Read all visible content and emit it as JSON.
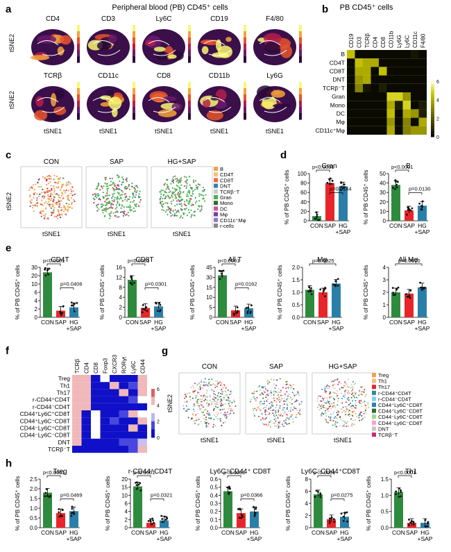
{
  "panel_letters": [
    "a",
    "b",
    "c",
    "d",
    "e",
    "f",
    "g",
    "h"
  ],
  "panel_a": {
    "title": "Peripheral blood (PB) CD45⁺ cells",
    "row1": [
      "CD4",
      "CD3",
      "Ly6C",
      "CD19",
      "F4/80"
    ],
    "row2": [
      "TCRβ",
      "CD11c",
      "CD8",
      "CD11b",
      "Ly6G"
    ],
    "ylabel": "tSNE2",
    "xlabel": "tSNE1"
  },
  "panel_b": {
    "title": "PB CD45⁺ cells",
    "columns": [
      "CD19",
      "CD3",
      "TCRβ",
      "CD4",
      "CD8",
      "CD11b",
      "Ly6G",
      "Ly6C",
      "CD11c",
      "F4/80"
    ],
    "rows": [
      "B",
      "CD4T",
      "CD8T",
      "DNT",
      "TCRβ⁻T",
      "Gran",
      "Mono",
      "DC",
      "Mφ",
      "CD11c⁺Mφ"
    ],
    "matrix": [
      [
        4.5,
        0,
        0,
        0,
        0,
        0,
        0,
        0,
        0.3,
        0
      ],
      [
        0,
        4.5,
        4,
        4,
        0,
        0,
        0,
        0,
        0,
        0
      ],
      [
        0,
        4,
        4,
        0,
        4.5,
        0,
        0,
        0,
        0,
        0
      ],
      [
        0,
        3.5,
        4,
        0,
        0,
        0,
        0,
        0,
        0,
        0
      ],
      [
        0,
        3,
        0.3,
        0,
        0.5,
        0,
        0,
        0,
        0,
        0
      ],
      [
        0,
        0,
        0,
        0,
        0,
        5,
        5,
        3.5,
        0,
        0
      ],
      [
        0,
        0,
        0,
        0,
        0,
        4,
        0.5,
        5,
        0,
        0.5
      ],
      [
        0,
        0,
        0,
        0,
        0,
        4.5,
        0,
        4,
        3.5,
        0.5
      ],
      [
        0,
        0,
        0,
        0,
        0,
        3.5,
        0,
        3,
        0,
        4
      ],
      [
        0,
        0,
        0,
        0,
        0,
        4,
        0,
        3,
        3.5,
        3.5
      ]
    ],
    "colorbar_ticks": [
      "6",
      "4",
      "2",
      "0"
    ]
  },
  "panel_c": {
    "conditions": [
      "CON",
      "SAP",
      "HG+SAP"
    ],
    "legend": [
      {
        "label": "B",
        "color": "#f2a04a"
      },
      {
        "label": "CD4T",
        "color": "#f4c27a"
      },
      {
        "label": "CD8T",
        "color": "#f06a3a"
      },
      {
        "label": "DNT",
        "color": "#2e7fb8"
      },
      {
        "label": "TCRβ⁻T",
        "color": "#c8c8c8"
      },
      {
        "label": "Gran",
        "color": "#4caf50"
      },
      {
        "label": "Mono",
        "color": "#2e6b2e"
      },
      {
        "label": "DC",
        "color": "#d04da0"
      },
      {
        "label": "Mφ",
        "color": "#7b3f98"
      },
      {
        "label": "CD11c⁺Mφ",
        "color": "#8e7bc0"
      },
      {
        "label": "r-cells",
        "color": "#888888"
      }
    ],
    "ylabel": "tSNE2",
    "xlabel": "tSNE1"
  },
  "groups": [
    "CON",
    "SAP",
    "HG",
    "+SAP"
  ],
  "colors": {
    "con": "#2e8b3e",
    "sap": "#e8262a",
    "hg": "#2a7fa8"
  },
  "chart_data": [
    {
      "type": "bar",
      "title": "Gran",
      "ylabel": "% of PB CD45⁺ cells",
      "categories": [
        "CON",
        "SAP",
        "HG+SAP"
      ],
      "values": [
        10,
        80,
        73
      ],
      "ylim": [
        0,
        100
      ],
      "ticks": [
        "0",
        "20",
        "40",
        "60",
        "80",
        "100"
      ],
      "p_values": [
        "p<0.0001",
        "p=0.0144"
      ]
    },
    {
      "type": "bar",
      "title": "B",
      "ylabel": "% of PB CD45⁺ cells",
      "categories": [
        "CON",
        "SAP",
        "HG+SAP"
      ],
      "values": [
        38,
        11,
        16
      ],
      "ylim": [
        0,
        50
      ],
      "ticks": [
        "0",
        "10",
        "20",
        "30",
        "40",
        "50"
      ],
      "p_values": [
        "p<0.0001",
        "p=0.0130"
      ]
    },
    {
      "type": "bar",
      "title": "CD4T",
      "ylabel": "% of PB CD45⁺ cells",
      "categories": [
        "CON",
        "SAP",
        "HG+SAP"
      ],
      "values": [
        27,
        4,
        6
      ],
      "ylim": [
        0,
        30
      ],
      "ticks": [
        "0",
        "2",
        "4",
        "6",
        "10",
        "20",
        "30"
      ],
      "p_values": [
        "p<0.0001",
        "p=0.0406"
      ]
    },
    {
      "type": "bar",
      "title": "CD8T",
      "ylabel": "% of PB CD45⁺ cells",
      "categories": [
        "CON",
        "SAP",
        "HG+SAP"
      ],
      "values": [
        12,
        3,
        3.5
      ],
      "ylim": [
        0,
        16
      ],
      "ticks": [
        "0",
        "2",
        "4",
        "8",
        "12",
        "16"
      ],
      "p_values": [
        "p<0.0001",
        "p=0.0301"
      ]
    },
    {
      "type": "bar",
      "title": "All T",
      "ylabel": "% of PB CD45⁺ cells",
      "categories": [
        "CON",
        "SAP",
        "HG+SAP"
      ],
      "values": [
        42,
        7,
        9
      ],
      "ylim": [
        0,
        50
      ],
      "ticks": [
        "0",
        "5",
        "10",
        "15",
        "30",
        "45"
      ],
      "p_values": [
        "p<0.0001",
        "p=0.0162"
      ]
    },
    {
      "type": "bar",
      "title": "Mφ",
      "ylabel": "% of PB CD45⁺ cells",
      "categories": [
        "CON",
        "SAP",
        "HG+SAP"
      ],
      "values": [
        1.1,
        1.0,
        1.35
      ],
      "ylim": [
        0,
        2.0
      ],
      "ticks": [
        "0.0",
        "0.5",
        "1.0",
        "1.5",
        "2.0"
      ],
      "p_values": [
        "p=0.0925"
      ]
    },
    {
      "type": "bar",
      "title": "All Mφ",
      "ylabel": "% of PB CD45⁺ cells",
      "categories": [
        "CON",
        "SAP",
        "HG+SAP"
      ],
      "values": [
        2.0,
        1.9,
        2.4
      ],
      "ylim": [
        0,
        4
      ],
      "ticks": [
        "0",
        "1",
        "2",
        "3",
        "4"
      ],
      "p_values": [
        "p=0.0670"
      ]
    },
    {
      "type": "bar",
      "title": "Treg",
      "ylabel": "% of PB CD45⁺ cells",
      "categories": [
        "CON",
        "SAP",
        "HG+SAP"
      ],
      "values": [
        1.8,
        0.75,
        0.85
      ],
      "ylim": [
        0,
        2.5
      ],
      "ticks": [
        "0.0",
        "0.5",
        "1.0",
        "1.5",
        "2.0",
        "2.5"
      ],
      "p_values": [
        "p<0.0001",
        "p=0.0469"
      ]
    },
    {
      "type": "bar",
      "title": "r-CD44⁺CD4T",
      "ylabel": "% of PB CD45⁺ cells",
      "categories": [
        "CON",
        "SAP",
        "HG+SAP"
      ],
      "values": [
        17,
        2,
        3
      ],
      "ylim": [
        0,
        20
      ],
      "ticks": [
        "0",
        "2",
        "4",
        "6",
        "10",
        "15",
        "20"
      ],
      "p_values": [
        "p<0.0001",
        "p=0.0321"
      ]
    },
    {
      "type": "bar",
      "title": "Ly6C⁺CD44⁺ CD8T",
      "ylabel": "% of PB CD45⁺ cells",
      "categories": [
        "CON",
        "SAP",
        "HG+SAP"
      ],
      "values": [
        0.45,
        0.18,
        0.2
      ],
      "ylim": [
        0,
        0.6
      ],
      "ticks": [
        "0.0",
        "0.1",
        "0.2",
        "0.3",
        "0.4",
        "0.5",
        "0.6"
      ],
      "p_values": [
        "p<0.0001",
        "p=0.0366"
      ]
    },
    {
      "type": "bar",
      "title": "Ly6C⁻CD44⁺CD8T",
      "ylabel": "% of PB CD45⁺ cells",
      "categories": [
        "CON",
        "SAP",
        "HG+SAP"
      ],
      "values": [
        5.5,
        1.4,
        1.8
      ],
      "ylim": [
        0,
        8
      ],
      "ticks": [
        "0",
        "2",
        "4",
        "6",
        "8"
      ],
      "p_values": [
        "p<0.0001",
        "p=0.0275"
      ]
    },
    {
      "type": "bar",
      "title": "Th1",
      "ylabel": "% of PB CD45⁺ cells",
      "categories": [
        "CON",
        "SAP",
        "HG+SAP"
      ],
      "values": [
        1.1,
        0.15,
        0.15
      ],
      "ylim": [
        0,
        1.5
      ],
      "ticks": [
        "0.0",
        "0.5",
        "1.0",
        "1.5"
      ],
      "p_values": [
        "p<0.0001"
      ]
    }
  ],
  "panel_f": {
    "columns": [
      "TCRβ",
      "CD4",
      "CD8",
      "Foxp3",
      "CXCR3",
      "RORγt",
      "Ly6C",
      "CD44"
    ],
    "rows": [
      "Treg",
      "Th1",
      "Th17",
      "r-CD44⁺CD4T",
      "r-CD44⁻CD4T",
      "CD44⁺Ly6C⁺CD8T",
      "CD44⁺Ly6C⁻CD8T",
      "CD44⁻Ly6C⁺CD8T",
      "CD44⁻Ly6C⁻CD8T",
      "DNT",
      "TCRβ⁻T"
    ],
    "colorbar_ticks": [
      "6",
      "4",
      "2",
      "0"
    ]
  },
  "panel_g": {
    "conditions": [
      "CON",
      "SAP",
      "HG+SAP"
    ],
    "legend": [
      {
        "label": "Treg",
        "color": "#f2a04a"
      },
      {
        "label": "Th1",
        "color": "#f4c27a"
      },
      {
        "label": "Th17",
        "color": "#e8262a"
      },
      {
        "label": "r-CD44⁺CD4T",
        "color": "#2e8b9a"
      },
      {
        "label": "r-CD44⁻CD4T",
        "color": "#7fd3e0"
      },
      {
        "label": "CD44⁺Ly6C⁺CD8T",
        "color": "#2e7fb8"
      },
      {
        "label": "CD44⁺Ly6C⁻CD8T",
        "color": "#2e6b2e"
      },
      {
        "label": "CD44⁻Ly6C⁺CD8T",
        "color": "#9fd98a"
      },
      {
        "label": "CD44⁻Ly6C⁻CD8T",
        "color": "#f4a6c8"
      },
      {
        "label": "DNT",
        "color": "#c8c8c8"
      },
      {
        "label": "TCRβ⁻T",
        "color": "#c0307a"
      }
    ],
    "ylabel": "tSNE2",
    "xlabel": "tSNE1"
  }
}
